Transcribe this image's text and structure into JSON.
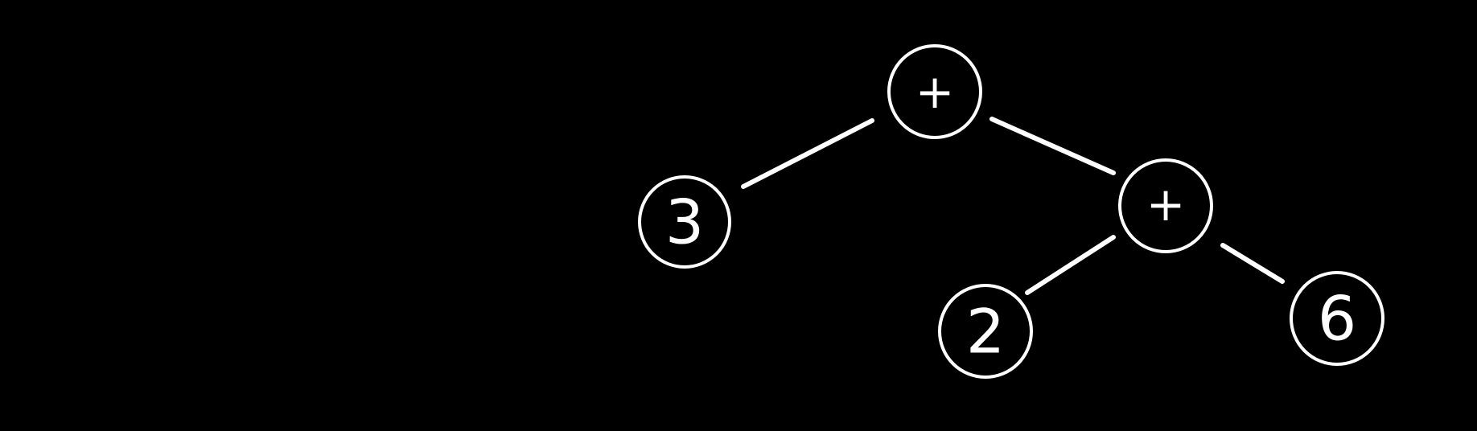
{
  "tree": {
    "nodes": {
      "root": {
        "label": "+"
      },
      "left_leaf": {
        "label": "3"
      },
      "right_op": {
        "label": "+"
      },
      "right_left_leaf": {
        "label": "2"
      },
      "right_right_leaf": {
        "label": "6"
      }
    }
  },
  "colors": {
    "background": "#000000",
    "stroke": "#ffffff"
  }
}
